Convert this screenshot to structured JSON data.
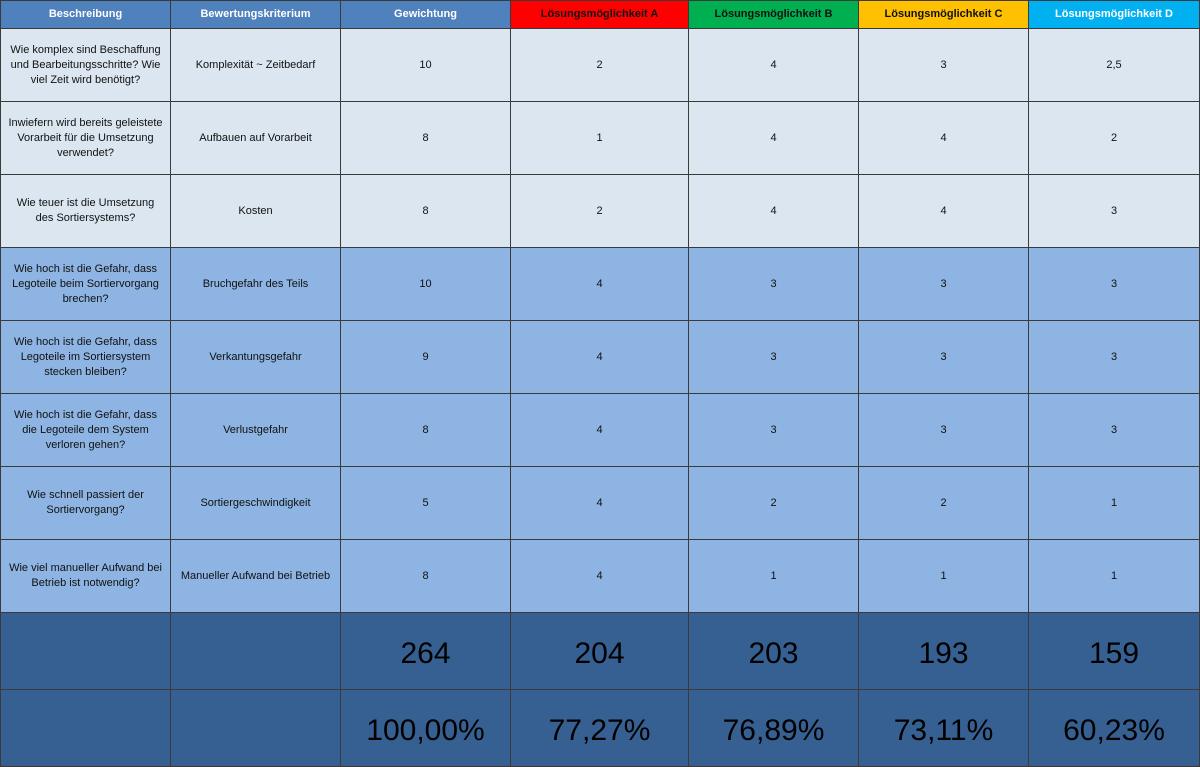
{
  "colors": {
    "header": "#4f81bd",
    "option_a": "#ff0000",
    "option_b": "#00b050",
    "option_c": "#ffc000",
    "option_d": "#00b0f0",
    "row_light": "#dce6f1",
    "row_dark": "#8db4e2",
    "totals": "#366092"
  },
  "headers": [
    "Beschreibung",
    "Bewertungskriterium",
    "Gewichtung",
    "Lösungsmöglichkeit A",
    "Lösungsmöglichkeit B",
    "Lösungsmöglichkeit C",
    "Lösungsmöglichkeit D"
  ],
  "rows": [
    {
      "desc": "Wie komplex sind Beschaffung und Bearbeitungsschritte? Wie viel Zeit wird benötigt?",
      "crit": "Komplexität ~ Zeitbedarf",
      "w": "10",
      "a": "2",
      "b": "4",
      "c": "3",
      "d": "2,5"
    },
    {
      "desc": "Inwiefern wird bereits geleistete Vorarbeit für die Umsetzung verwendet?",
      "crit": "Aufbauen auf Vorarbeit",
      "w": "8",
      "a": "1",
      "b": "4",
      "c": "4",
      "d": "2"
    },
    {
      "desc": "Wie teuer ist die Umsetzung des Sortiersystems?",
      "crit": "Kosten",
      "w": "8",
      "a": "2",
      "b": "4",
      "c": "4",
      "d": "3"
    },
    {
      "desc": "Wie hoch ist die Gefahr, dass Legoteile beim Sortiervorgang brechen?",
      "crit": "Bruchgefahr des Teils",
      "w": "10",
      "a": "4",
      "b": "3",
      "c": "3",
      "d": "3"
    },
    {
      "desc": "Wie hoch ist die Gefahr, dass Legoteile im Sortiersystem stecken bleiben?",
      "crit": "Verkantungsgefahr",
      "w": "9",
      "a": "4",
      "b": "3",
      "c": "3",
      "d": "3"
    },
    {
      "desc": "Wie hoch ist die Gefahr, dass die Legoteile dem System verloren gehen?",
      "crit": "Verlustgefahr",
      "w": "8",
      "a": "4",
      "b": "3",
      "c": "3",
      "d": "3"
    },
    {
      "desc": "Wie schnell passiert der Sortiervorgang?",
      "crit": "Sortiergeschwindigkeit",
      "w": "5",
      "a": "4",
      "b": "2",
      "c": "2",
      "d": "1"
    },
    {
      "desc": "Wie viel manueller Aufwand bei Betrieb ist notwendig?",
      "crit": "Manueller Aufwand bei Betrieb",
      "w": "8",
      "a": "4",
      "b": "1",
      "c": "1",
      "d": "1"
    }
  ],
  "totals": {
    "w": "264",
    "a": "204",
    "b": "203",
    "c": "193",
    "d": "159"
  },
  "percent": {
    "w": "100,00%",
    "a": "77,27%",
    "b": "76,89%",
    "c": "73,11%",
    "d": "60,23%"
  }
}
